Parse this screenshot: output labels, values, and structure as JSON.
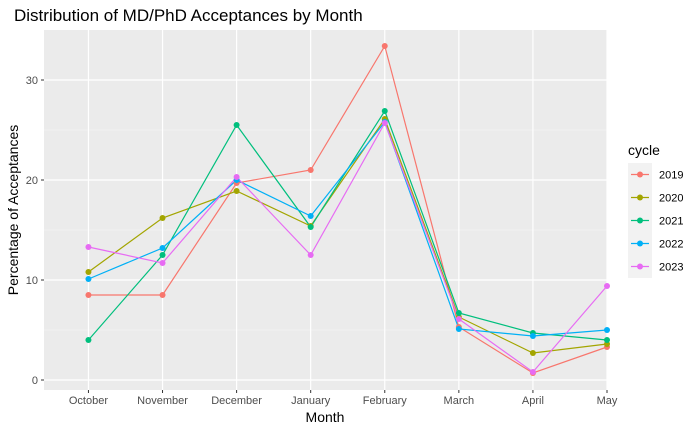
{
  "chart_data": {
    "type": "line",
    "title": "Distribution of MD/PhD Acceptances by Month",
    "xlabel": "Month",
    "ylabel": "Percentage of Acceptances",
    "categories": [
      "October",
      "November",
      "December",
      "January",
      "February",
      "March",
      "April",
      "May"
    ],
    "ylim": [
      -1,
      35
    ],
    "yticks": [
      0,
      10,
      20,
      30
    ],
    "grid": true,
    "legend": {
      "title": "cycle",
      "position": "right"
    },
    "series": [
      {
        "name": "2019",
        "color": "#F8766D",
        "values": [
          8.5,
          8.5,
          19.7,
          21.0,
          33.4,
          5.3,
          0.7,
          3.3
        ]
      },
      {
        "name": "2020",
        "color": "#A3A500",
        "values": [
          10.8,
          16.2,
          18.9,
          15.4,
          26.1,
          6.3,
          2.7,
          3.6
        ]
      },
      {
        "name": "2021",
        "color": "#00BF7D",
        "values": [
          4.0,
          12.5,
          25.5,
          15.3,
          26.9,
          6.7,
          4.7,
          4.0
        ]
      },
      {
        "name": "2022",
        "color": "#00B0F6",
        "values": [
          10.1,
          13.2,
          20.0,
          16.4,
          25.8,
          5.1,
          4.4,
          5.0
        ]
      },
      {
        "name": "2023",
        "color": "#E76BF3",
        "values": [
          13.3,
          11.7,
          20.3,
          12.5,
          25.7,
          6.1,
          0.8,
          9.4
        ]
      }
    ]
  }
}
